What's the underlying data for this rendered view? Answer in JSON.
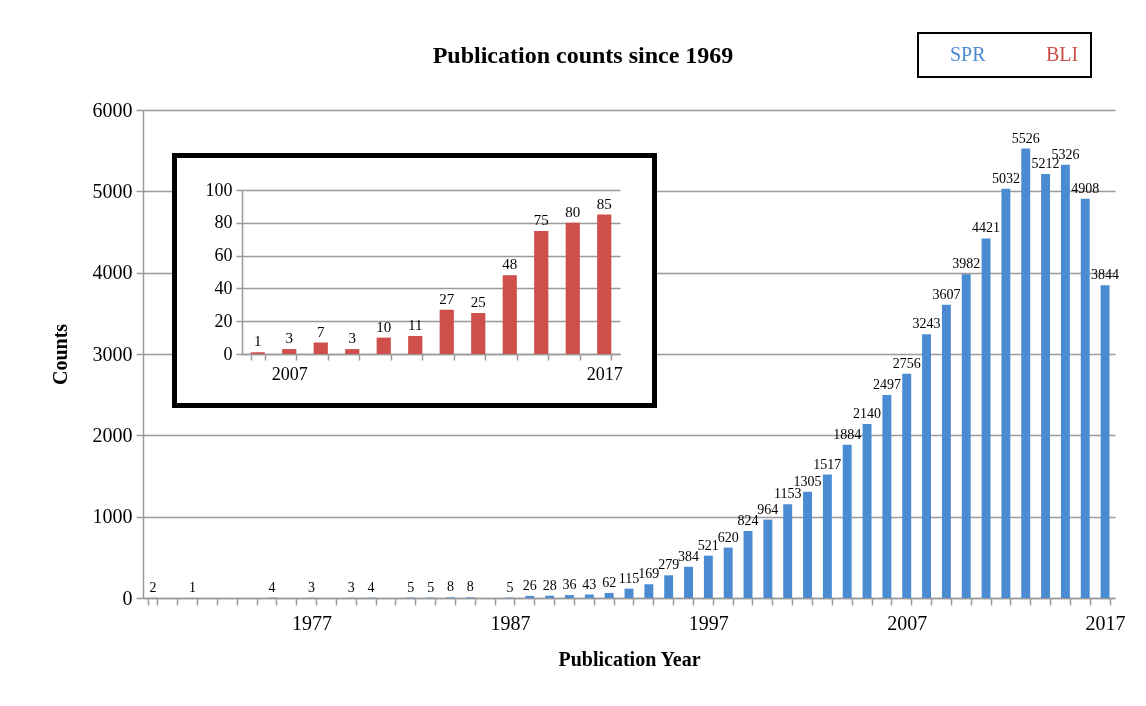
{
  "chart_data": [
    {
      "type": "bar",
      "title": "Publication counts since 1969",
      "xlabel": "Publication Year",
      "ylabel": "Counts",
      "categories": [
        null,
        null,
        null,
        null,
        null,
        null,
        null,
        null,
        "1977",
        null,
        null,
        null,
        null,
        null,
        null,
        null,
        null,
        null,
        "1987",
        null,
        null,
        null,
        null,
        null,
        null,
        null,
        null,
        null,
        "1997",
        null,
        null,
        null,
        null,
        null,
        null,
        null,
        null,
        null,
        "2007",
        null,
        null,
        null,
        null,
        null,
        null,
        null,
        null,
        null,
        "2017"
      ],
      "series": [
        {
          "name": "SPR",
          "color": "#4a8bd2",
          "values": [
            2,
            null,
            1,
            null,
            null,
            null,
            4,
            null,
            3,
            null,
            3,
            4,
            null,
            5,
            5,
            8,
            8,
            null,
            5,
            26,
            28,
            36,
            43,
            62,
            115,
            169,
            279,
            384,
            521,
            620,
            824,
            964,
            1153,
            1305,
            1517,
            1884,
            2140,
            2497,
            2756,
            3243,
            3607,
            3982,
            4421,
            5032,
            5526,
            5212,
            5326,
            4908,
            3844
          ]
        }
      ],
      "ylim": [
        0,
        6000
      ],
      "yticks": [
        0,
        1000,
        2000,
        3000,
        4000,
        5000,
        6000
      ],
      "grid": "y",
      "legend": "top right",
      "data_labels": true
    },
    {
      "type": "bar",
      "categories": [
        null,
        "2007",
        null,
        null,
        null,
        null,
        null,
        null,
        null,
        null,
        null,
        "2017"
      ],
      "series": [
        {
          "name": "BLI",
          "color": "#cf4f4a",
          "values": [
            1,
            3,
            7,
            3,
            10,
            11,
            27,
            25,
            48,
            75,
            80,
            85
          ]
        }
      ],
      "ylim": [
        0,
        100
      ],
      "yticks": [
        0,
        20,
        40,
        60,
        80,
        100
      ],
      "grid": "y",
      "data_labels": true
    }
  ]
}
